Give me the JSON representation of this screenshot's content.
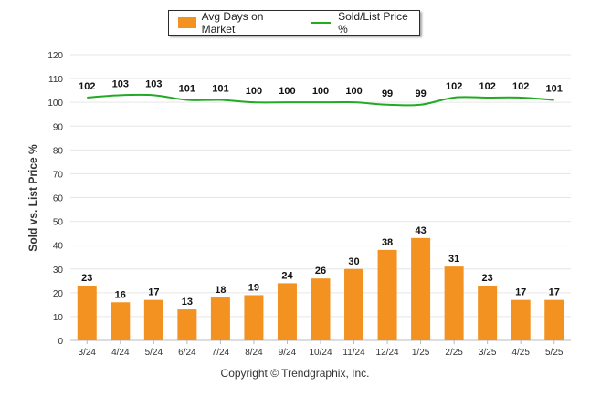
{
  "chart_data": {
    "type": "bar",
    "ylabel": "Sold vs. List Price %",
    "ylim": [
      0,
      120
    ],
    "yticks": [
      0,
      10,
      20,
      30,
      40,
      50,
      60,
      70,
      80,
      90,
      100,
      110,
      120
    ],
    "grid": true,
    "legend_position": "top",
    "categories": [
      "3/24",
      "4/24",
      "5/24",
      "6/24",
      "7/24",
      "8/24",
      "9/24",
      "10/24",
      "11/24",
      "12/24",
      "1/25",
      "2/25",
      "3/25",
      "4/25",
      "5/25"
    ],
    "series": [
      {
        "name": "Avg Days on Market",
        "kind": "bar",
        "color": "#f39220",
        "values": [
          23,
          16,
          17,
          13,
          18,
          19,
          24,
          26,
          30,
          38,
          43,
          31,
          23,
          17,
          17
        ]
      },
      {
        "name": "Sold/List Price %",
        "kind": "line",
        "color": "#22aa22",
        "values": [
          102,
          103,
          103,
          101,
          101,
          100,
          100,
          100,
          100,
          99,
          99,
          102,
          102,
          102,
          101
        ]
      }
    ]
  },
  "footer": {
    "copyright": "Copyright © Trendgraphix, Inc."
  }
}
